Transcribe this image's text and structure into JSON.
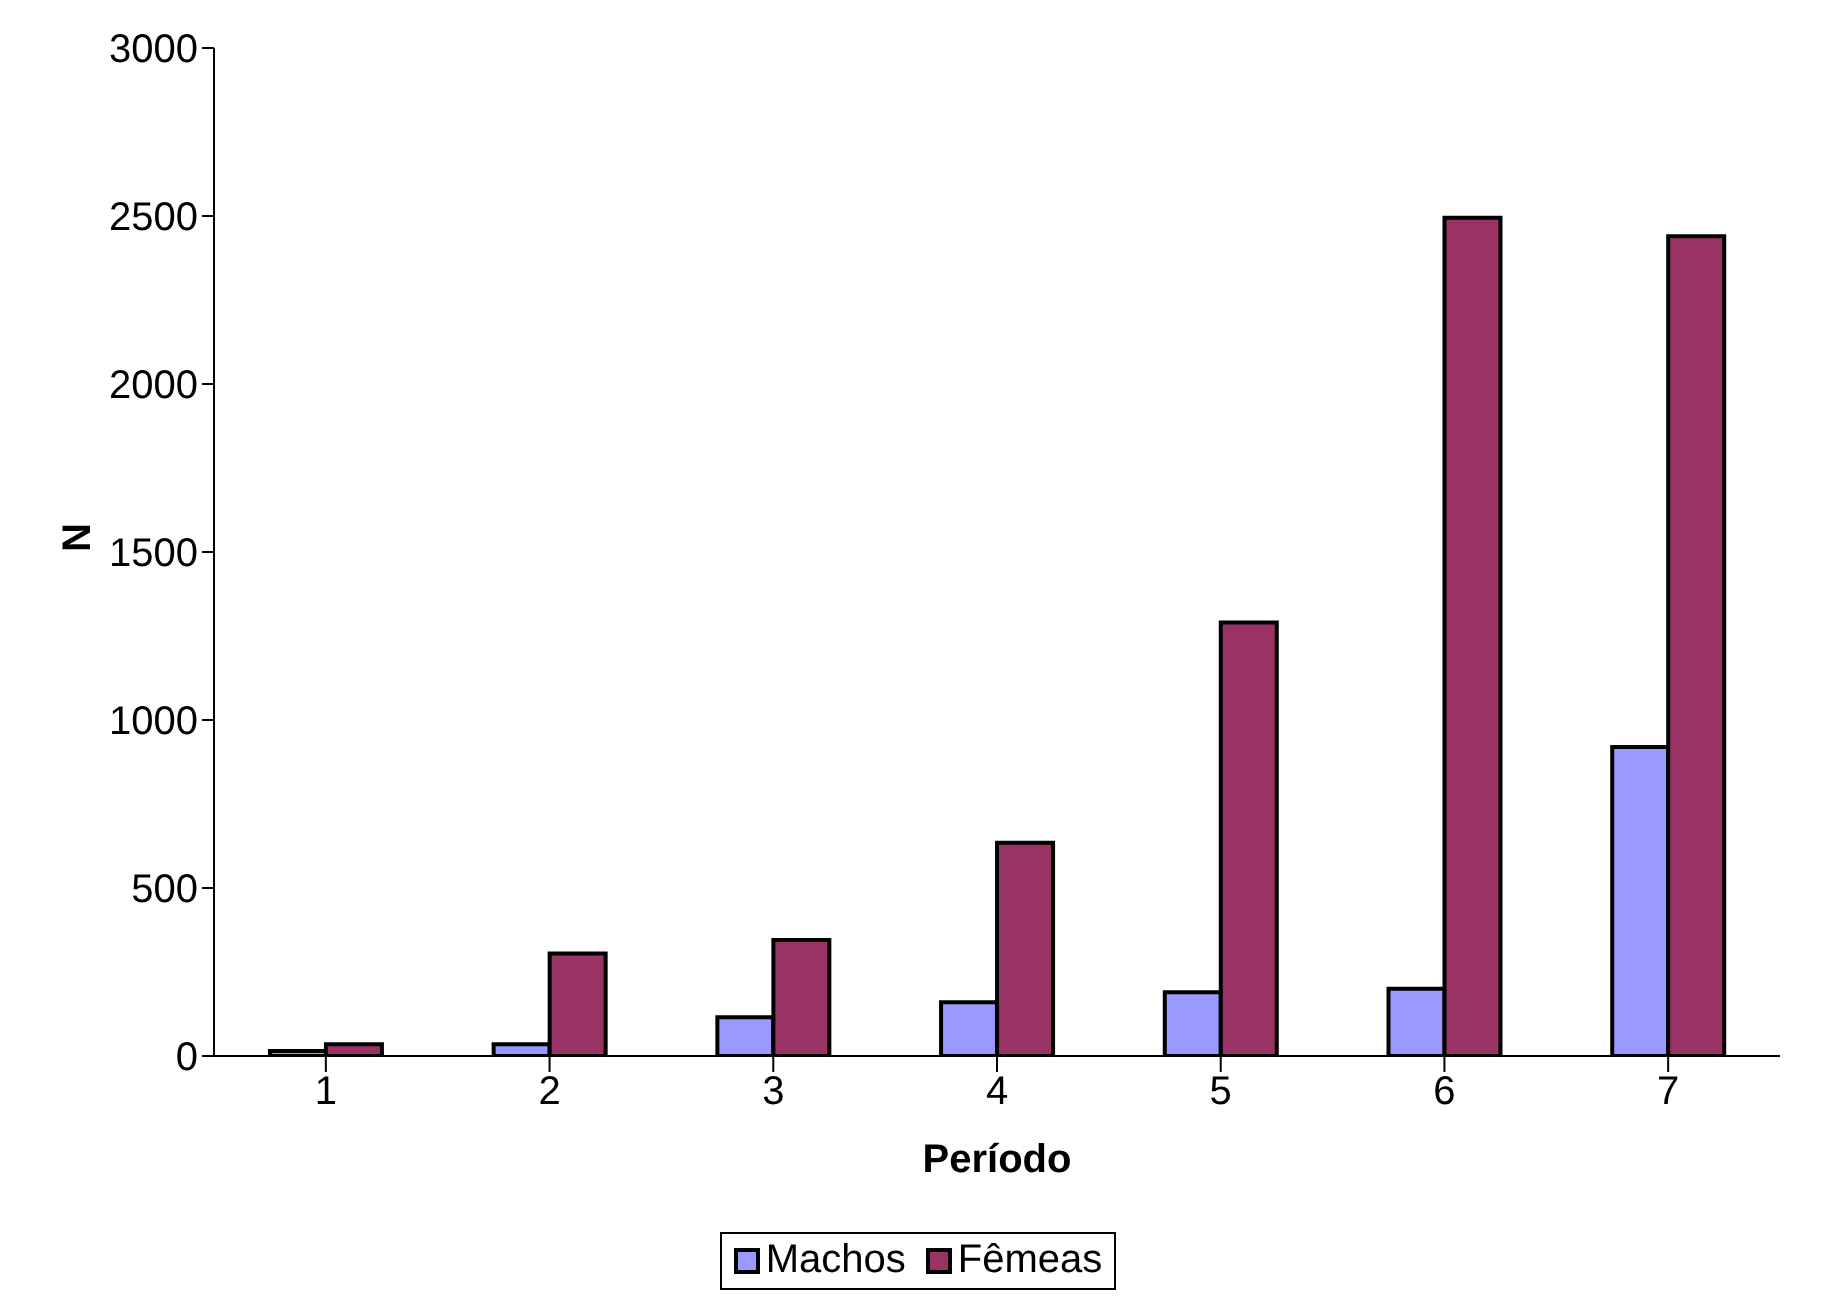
{
  "chart_data": {
    "type": "bar",
    "xlabel": "Período",
    "ylabel": "N",
    "categories": [
      "1",
      "2",
      "3",
      "4",
      "5",
      "6",
      "7"
    ],
    "series": [
      {
        "name": "Machos",
        "color": "#9999ff",
        "values": [
          15,
          35,
          115,
          160,
          190,
          200,
          920
        ]
      },
      {
        "name": "Fêmeas",
        "color": "#993366",
        "values": [
          35,
          305,
          345,
          635,
          1290,
          2495,
          2440
        ]
      }
    ],
    "ylim": [
      0,
      3000
    ],
    "yticks": [
      0,
      500,
      1000,
      1500,
      2000,
      2500,
      3000
    ],
    "grid": false,
    "legend": "bottom"
  }
}
